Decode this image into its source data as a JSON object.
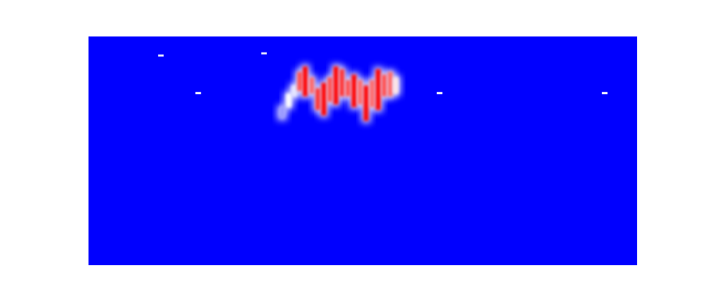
{
  "chart_data": {
    "type": "heatmap",
    "title": "",
    "xlabel": "",
    "ylabel": "",
    "grid": false,
    "legend": "none",
    "colormap": {
      "low": "#0000ff",
      "mid": "#ffffff",
      "high": "#ff0000"
    },
    "x_range": [
      0,
      100
    ],
    "y_range": [
      0,
      42
    ],
    "background_value": 0,
    "isolated_points": [
      {
        "x": 13.2,
        "y": 38.5,
        "value": 0.45
      },
      {
        "x": 32.0,
        "y": 38.9,
        "value": 0.45
      },
      {
        "x": 20.0,
        "y": 31.6,
        "value": 0.5
      },
      {
        "x": 64.0,
        "y": 31.6,
        "value": 0.5
      },
      {
        "x": 94.1,
        "y": 31.6,
        "value": 0.5
      }
    ],
    "blob_columns": [
      {
        "x": 35.3,
        "y_low": 27.0,
        "y_high": 29.0,
        "value": 0.3
      },
      {
        "x": 36.5,
        "y_low": 29.0,
        "y_high": 31.5,
        "value": 0.5
      },
      {
        "x": 37.5,
        "y_low": 31.0,
        "y_high": 33.0,
        "value": 0.45
      },
      {
        "x": 38.5,
        "y_low": 32.0,
        "y_high": 35.5,
        "value": 0.85
      },
      {
        "x": 39.5,
        "y_low": 31.0,
        "y_high": 36.5,
        "value": 1.0
      },
      {
        "x": 40.7,
        "y_low": 31.5,
        "y_high": 34.5,
        "value": 0.8
      },
      {
        "x": 41.8,
        "y_low": 28.5,
        "y_high": 32.5,
        "value": 0.9
      },
      {
        "x": 42.9,
        "y_low": 27.5,
        "y_high": 33.5,
        "value": 1.0
      },
      {
        "x": 44.0,
        "y_low": 30.0,
        "y_high": 34.5,
        "value": 0.85
      },
      {
        "x": 45.1,
        "y_low": 29.5,
        "y_high": 36.5,
        "value": 1.0
      },
      {
        "x": 46.2,
        "y_low": 31.0,
        "y_high": 36.0,
        "value": 0.9
      },
      {
        "x": 47.3,
        "y_low": 31.0,
        "y_high": 34.0,
        "value": 0.85
      },
      {
        "x": 48.4,
        "y_low": 29.0,
        "y_high": 35.0,
        "value": 1.0
      },
      {
        "x": 49.5,
        "y_low": 29.5,
        "y_high": 34.0,
        "value": 0.8
      },
      {
        "x": 50.6,
        "y_low": 26.5,
        "y_high": 33.0,
        "value": 1.0
      },
      {
        "x": 51.7,
        "y_low": 29.0,
        "y_high": 34.0,
        "value": 0.8
      },
      {
        "x": 52.8,
        "y_low": 28.5,
        "y_high": 36.0,
        "value": 1.0
      },
      {
        "x": 53.9,
        "y_low": 31.0,
        "y_high": 35.0,
        "value": 0.85
      },
      {
        "x": 55.0,
        "y_low": 31.0,
        "y_high": 35.5,
        "value": 0.8
      },
      {
        "x": 56.0,
        "y_low": 31.5,
        "y_high": 34.5,
        "value": 0.55
      }
    ]
  }
}
